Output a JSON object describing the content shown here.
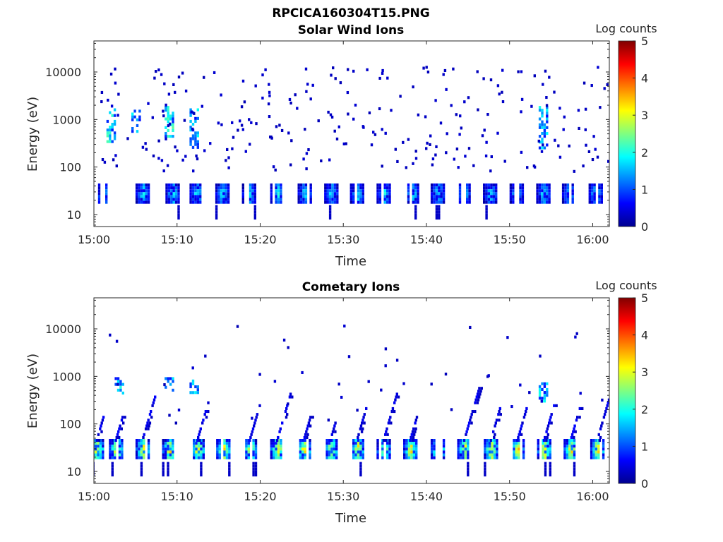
{
  "figure": {
    "title": "RPCICA160304T15.PNG"
  },
  "colorbar_label": "Log counts",
  "colorscale": [
    "#00008f",
    "#0000ff",
    "#0080ff",
    "#00ffff",
    "#80ff80",
    "#ffff00",
    "#ff8000",
    "#ff0000",
    "#800000"
  ],
  "chart_data": [
    {
      "type": "heatmap",
      "title": "Solar Wind Ions",
      "xlabel": "Time",
      "ylabel": "Energy (eV)",
      "yscale": "log",
      "ylim": [
        5.6,
        45000
      ],
      "xlim": [
        "15:00",
        "16:02"
      ],
      "x_ticks": [
        "15:00",
        "15:10",
        "15:20",
        "15:30",
        "15:40",
        "15:50",
        "16:00"
      ],
      "y_ticks": [
        10,
        100,
        1000,
        10000
      ],
      "colorbar": {
        "label": "Log counts",
        "range": [
          0,
          5
        ],
        "ticks": [
          0,
          1,
          2,
          3,
          4,
          5
        ]
      },
      "bursts_minute": [
        1.0,
        5.8,
        9.4,
        12.3,
        15.4,
        18.6,
        22.0,
        25.3,
        28.5,
        31.6,
        34.8,
        38.2,
        41.3,
        44.4,
        47.6,
        50.8,
        54.0,
        57.1,
        60.3
      ],
      "low_band_eV": [
        17,
        42
      ],
      "low_band_peak_log_counts": 1.8,
      "high_energy_patches": [
        {
          "time": "15:02",
          "energy_eV": [
            330,
            1600
          ],
          "peak_log_counts": 2.2
        },
        {
          "time": "15:05",
          "energy_eV": [
            500,
            1500
          ],
          "peak_log_counts": 1.8
        },
        {
          "time": "15:09",
          "energy_eV": [
            400,
            1800
          ],
          "peak_log_counts": 2.3
        },
        {
          "time": "15:12",
          "energy_eV": [
            250,
            1600
          ],
          "peak_log_counts": 1.9
        },
        {
          "time": "15:54",
          "energy_eV": [
            250,
            1800
          ],
          "peak_log_counts": 1.9
        }
      ],
      "sparse_background_log_counts": 0.3
    },
    {
      "type": "heatmap",
      "title": "Cometary Ions",
      "xlabel": "Time",
      "ylabel": "Energy (eV)",
      "yscale": "log",
      "ylim": [
        5.6,
        45000
      ],
      "xlim": [
        "15:00",
        "16:02"
      ],
      "x_ticks": [
        "15:00",
        "15:10",
        "15:20",
        "15:30",
        "15:40",
        "15:50",
        "16:00"
      ],
      "y_ticks": [
        10,
        100,
        1000,
        10000
      ],
      "colorbar": {
        "label": "Log counts",
        "range": [
          0,
          5
        ],
        "ticks": [
          0,
          1,
          2,
          3,
          4,
          5
        ]
      },
      "bursts_minute": [
        0.3,
        2.6,
        5.8,
        9.0,
        12.4,
        15.5,
        18.7,
        22.0,
        25.2,
        28.4,
        31.6,
        34.8,
        38.0,
        41.3,
        44.5,
        47.7,
        50.9,
        54.1,
        57.3,
        60.5
      ],
      "low_band_eV": [
        17,
        45
      ],
      "low_band_peak_log_counts": 3.2,
      "rising_tails": {
        "from_eV": 45,
        "to_eV": 600,
        "peak_log_counts": 0.6
      },
      "high_energy_patches": [
        {
          "time": "15:03",
          "energy_eV": [
            400,
            900
          ],
          "peak_log_counts": 2.0
        },
        {
          "time": "15:09",
          "energy_eV": [
            500,
            900
          ],
          "peak_log_counts": 2.0
        },
        {
          "time": "15:12",
          "energy_eV": [
            400,
            800
          ],
          "peak_log_counts": 1.8
        },
        {
          "time": "15:54",
          "energy_eV": [
            300,
            700
          ],
          "peak_log_counts": 1.9
        }
      ],
      "sparse_background_log_counts": 0.3
    }
  ]
}
